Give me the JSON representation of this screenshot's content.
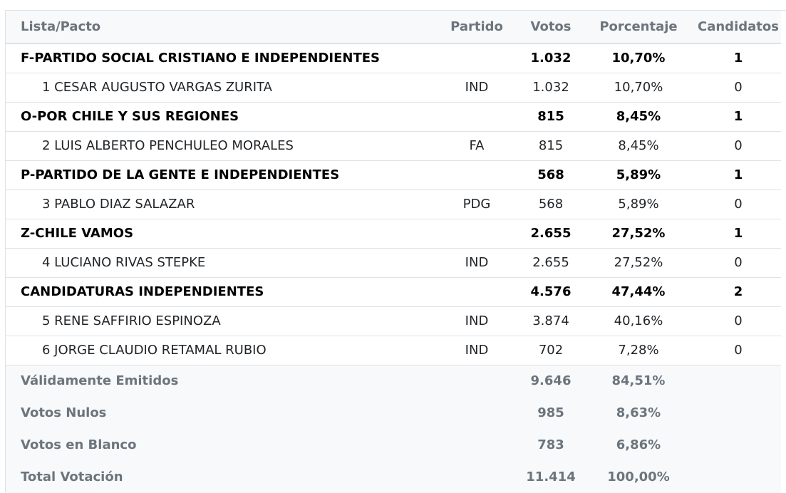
{
  "table": {
    "headers": {
      "lista": "Lista/Pacto",
      "partido": "Partido",
      "votos": "Votos",
      "porcentaje": "Porcentaje",
      "candidatos": "Candidatos"
    },
    "rows": [
      {
        "type": "group",
        "name": "F-PARTIDO SOCIAL CRISTIANO E INDEPENDIENTES",
        "partido": "",
        "votos": "1.032",
        "porcentaje": "10,70%",
        "candidatos": "1"
      },
      {
        "type": "cand",
        "name": "1 CESAR AUGUSTO VARGAS ZURITA",
        "partido": "IND",
        "votos": "1.032",
        "porcentaje": "10,70%",
        "candidatos": "0"
      },
      {
        "type": "group",
        "name": "O-POR CHILE Y SUS REGIONES",
        "partido": "",
        "votos": "815",
        "porcentaje": "8,45%",
        "candidatos": "1"
      },
      {
        "type": "cand",
        "name": "2 LUIS ALBERTO PENCHULEO MORALES",
        "partido": "FA",
        "votos": "815",
        "porcentaje": "8,45%",
        "candidatos": "0"
      },
      {
        "type": "group",
        "name": "P-PARTIDO DE LA GENTE E INDEPENDIENTES",
        "partido": "",
        "votos": "568",
        "porcentaje": "5,89%",
        "candidatos": "1"
      },
      {
        "type": "cand",
        "name": "3 PABLO DIAZ SALAZAR",
        "partido": "PDG",
        "votos": "568",
        "porcentaje": "5,89%",
        "candidatos": "0"
      },
      {
        "type": "group",
        "name": "Z-CHILE VAMOS",
        "partido": "",
        "votos": "2.655",
        "porcentaje": "27,52%",
        "candidatos": "1"
      },
      {
        "type": "cand",
        "name": "4 LUCIANO RIVAS STEPKE",
        "partido": "IND",
        "votos": "2.655",
        "porcentaje": "27,52%",
        "candidatos": "0"
      },
      {
        "type": "group",
        "name": "CANDIDATURAS INDEPENDIENTES",
        "partido": "",
        "votos": "4.576",
        "porcentaje": "47,44%",
        "candidatos": "2"
      },
      {
        "type": "cand",
        "name": "5 RENE SAFFIRIO ESPINOZA",
        "partido": "IND",
        "votos": "3.874",
        "porcentaje": "40,16%",
        "candidatos": "0"
      },
      {
        "type": "cand",
        "name": "6 JORGE CLAUDIO RETAMAL RUBIO",
        "partido": "IND",
        "votos": "702",
        "porcentaje": "7,28%",
        "candidatos": "0"
      }
    ],
    "totals": [
      {
        "label": "Válidamente Emitidos",
        "votos": "9.646",
        "porcentaje": "84,51%"
      },
      {
        "label": "Votos Nulos",
        "votos": "985",
        "porcentaje": "8,63%"
      },
      {
        "label": "Votos en Blanco",
        "votos": "783",
        "porcentaje": "6,86%"
      },
      {
        "label": "Total Votación",
        "votos": "11.414",
        "porcentaje": "100,00%"
      }
    ]
  }
}
